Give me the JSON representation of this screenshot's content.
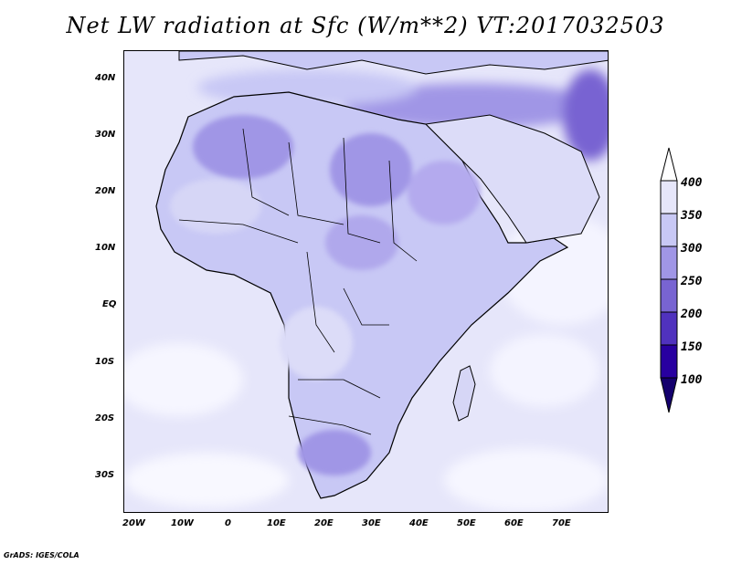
{
  "title": "Net LW radiation at Sfc (W/m**2) VT:2017032503",
  "footer": "GrADS: IGES/COLA",
  "axes": {
    "lon_labels": [
      "20W",
      "10W",
      "0",
      "10E",
      "20E",
      "30E",
      "40E",
      "50E",
      "60E",
      "70E"
    ],
    "lat_labels": [
      "40N",
      "30N",
      "20N",
      "10N",
      "EQ",
      "10S",
      "20S",
      "30S"
    ]
  },
  "colorbar": {
    "labels": [
      "400",
      "350",
      "300",
      "250",
      "200",
      "150",
      "100"
    ],
    "colors": [
      "#ffffff",
      "#e6e6fa",
      "#c8c8f5",
      "#a096e6",
      "#7864d2",
      "#5032be",
      "#2800a0",
      "#14006e"
    ]
  },
  "map": {
    "region": "Africa and surrounding ocean",
    "lon_range": [
      -25,
      80
    ],
    "lat_range": [
      -37,
      45
    ],
    "projection": "lat-lon"
  }
}
